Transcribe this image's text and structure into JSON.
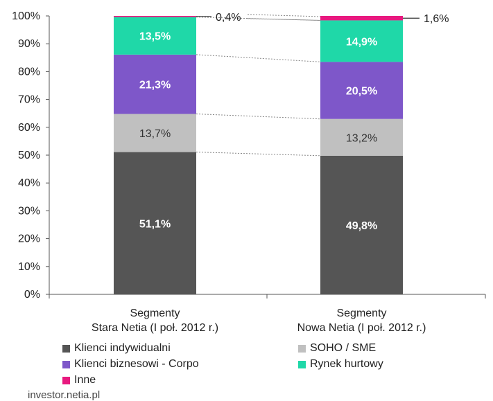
{
  "chart_data": {
    "type": "bar",
    "stacked": true,
    "categories": [
      "Segmenty\nStara Netia (I poł. 2012 r.)",
      "Segmenty\nNowa Netia (I poł. 2012 r.)"
    ],
    "series": [
      {
        "name": "Klienci indywidualni",
        "values": [
          51.1,
          49.8
        ],
        "labels": [
          "51,1%",
          "49,8%"
        ],
        "color": "#555555",
        "label_color": "#ffffff"
      },
      {
        "name": "SOHO / SME",
        "values": [
          13.7,
          13.2
        ],
        "labels": [
          "13,7%",
          "13,2%"
        ],
        "color": "#c0c0c0",
        "label_color": "#333333"
      },
      {
        "name": "Klienci biznesowi - Corpo",
        "values": [
          21.3,
          20.5
        ],
        "labels": [
          "21,3%",
          "20,5%"
        ],
        "color": "#7e57c9",
        "label_color": "#ffffff"
      },
      {
        "name": "Rynek hurtowy",
        "values": [
          13.5,
          14.9
        ],
        "labels": [
          "13,5%",
          "14,9%"
        ],
        "color": "#1fd8a8",
        "label_color": "#ffffff"
      },
      {
        "name": "Inne",
        "values": [
          0.4,
          1.6
        ],
        "labels": [
          "0,4%",
          "1,6%"
        ],
        "color": "#e8197f",
        "label_color": "#333333"
      }
    ],
    "y_ticks": [
      "0%",
      "10%",
      "20%",
      "30%",
      "40%",
      "50%",
      "60%",
      "70%",
      "80%",
      "90%",
      "100%"
    ],
    "ylim": [
      0,
      100
    ],
    "title": "",
    "xlabel": "",
    "ylabel": "",
    "grid": false,
    "legend_position": "bottom",
    "connector_lines": true
  },
  "footer": {
    "text": "investor.netia.pl"
  }
}
